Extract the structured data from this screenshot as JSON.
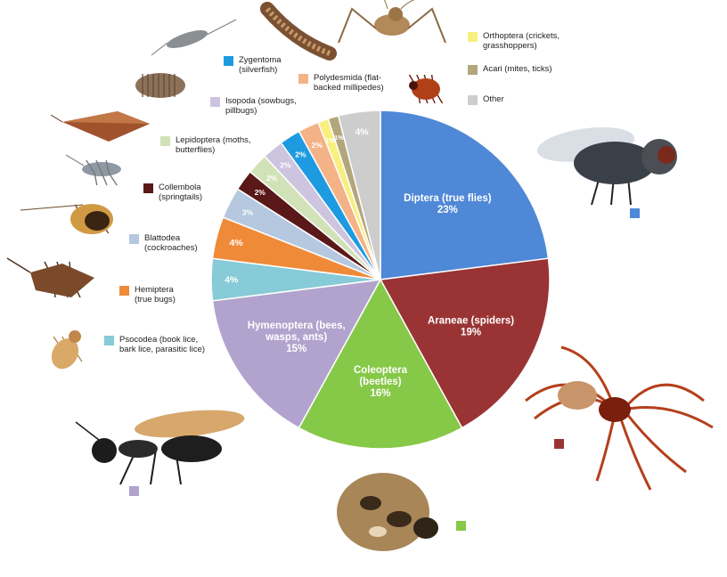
{
  "chart_data": {
    "type": "pie",
    "start_angle_deg": 0,
    "direction": "clockwise",
    "slices": [
      {
        "label": "Diptera (true flies)",
        "value": 23,
        "value_label": "23%",
        "color": "#4f88d6",
        "text_color": "#ffffff"
      },
      {
        "label": "Araneae (spiders)",
        "value": 19,
        "value_label": "19%",
        "color": "#9a3434",
        "text_color": "#ffffff"
      },
      {
        "label": "Coleoptera (beetles)",
        "value": 16,
        "value_label": "16%",
        "color": "#86c848",
        "text_color": "#ffffff"
      },
      {
        "label": "Hymenoptera (bees, wasps, ants)",
        "value": 15,
        "value_label": "15%",
        "color": "#b1a3cd",
        "text_color": "#ffffff"
      },
      {
        "label": "Psocodea (book lice, bark lice, parasitic lice)",
        "value": 4,
        "value_label": "4%",
        "color": "#87cad8",
        "text_color": "#ffffff"
      },
      {
        "label": "Hemiptera (true bugs)",
        "value": 4,
        "value_label": "4%",
        "color": "#ef8a38",
        "text_color": "#ffffff"
      },
      {
        "label": "Blattodea (cockroaches)",
        "value": 3,
        "value_label": "3%",
        "color": "#b5c8e0",
        "text_color": "#ffffff"
      },
      {
        "label": "Collembola (springtails)",
        "value": 2,
        "value_label": "2%",
        "color": "#5a1818",
        "text_color": "#ffffff"
      },
      {
        "label": "Lepidoptera (moths, butterflies)",
        "value": 2,
        "value_label": "2%",
        "color": "#d2e2b8",
        "text_color": "#ffffff"
      },
      {
        "label": "Isopoda (sowbugs, pillbugs)",
        "value": 2,
        "value_label": "2%",
        "color": "#cdc4e0",
        "text_color": "#ffffff"
      },
      {
        "label": "Zygentoma (silverfish)",
        "value": 2,
        "value_label": "2%",
        "color": "#1e9be0",
        "text_color": "#ffffff"
      },
      {
        "label": "Polydesmida (flat-backed millipedes)",
        "value": 2,
        "value_label": "2%",
        "color": "#f4b287",
        "text_color": "#ffffff"
      },
      {
        "label": "Orthoptera (crickets, grasshoppers)",
        "value": 1,
        "value_label": "1%",
        "color": "#f8ef80",
        "text_color": "#ffffff"
      },
      {
        "label": "Acari (mites, ticks)",
        "value": 1,
        "value_label": "1%",
        "color": "#b3a67c",
        "text_color": "#ffffff"
      },
      {
        "label": "Other",
        "value": 4,
        "value_label": "4%",
        "color": "#cdcdcd",
        "text_color": "#ffffff"
      }
    ]
  },
  "legend": [
    {
      "text": "Zygentoma\n(silverfish)",
      "color": "#1e9be0"
    },
    {
      "text": "Polydesmida (flat-\nbacked millipedes)",
      "color": "#f4b287"
    },
    {
      "text": "Orthoptera (crickets,\ngrasshoppers)",
      "color": "#f8ef80"
    },
    {
      "text": "Acari (mites, ticks)",
      "color": "#b3a67c"
    },
    {
      "text": "Other",
      "color": "#cdcdcd"
    },
    {
      "text": "Isopoda (sowbugs,\npillbugs)",
      "color": "#cdc4e0"
    },
    {
      "text": "Lepidoptera (moths,\nbutterflies)",
      "color": "#d2e2b8"
    },
    {
      "text": "Collembola\n(springtails)",
      "color": "#5a1818"
    },
    {
      "text": "Blattodea\n(cockroaches)",
      "color": "#b5c8e0"
    },
    {
      "text": "Hemiptera\n(true bugs)",
      "color": "#ef8a38"
    },
    {
      "text": "Psocodea (book lice,\nbark lice, parasitic lice)",
      "color": "#87cad8"
    }
  ],
  "photo_markers": [
    {
      "name": "fly",
      "color": "#4f88d6"
    },
    {
      "name": "spider",
      "color": "#9a3434"
    },
    {
      "name": "beetle",
      "color": "#86c848"
    },
    {
      "name": "ant",
      "color": "#b1a3cd"
    }
  ],
  "icons": [
    "silverfish-icon",
    "millipede-icon",
    "cricket-icon",
    "tick-icon",
    "pillbug-icon",
    "moth-icon",
    "springtail-icon",
    "cockroach-icon",
    "true-bug-icon",
    "booklouse-icon",
    "fly-icon",
    "spider-icon",
    "beetle-icon",
    "ant-icon"
  ]
}
